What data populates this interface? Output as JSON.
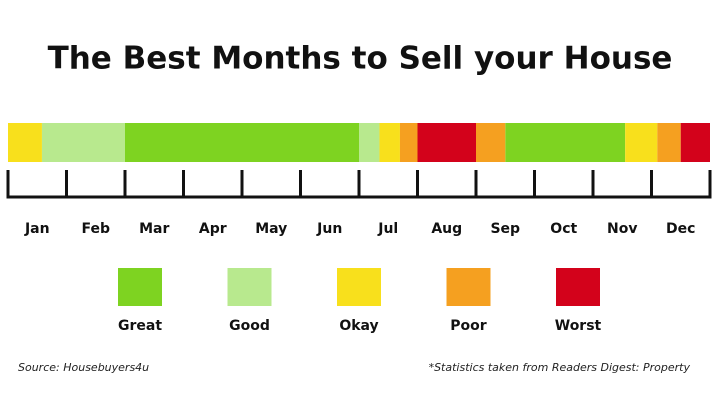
{
  "chart_data": {
    "type": "timeline",
    "title": "The Best Months to Sell your House",
    "categories": [
      "Jan",
      "Feb",
      "Mar",
      "Apr",
      "May",
      "Jun",
      "Jul",
      "Aug",
      "Sep",
      "Oct",
      "Nov",
      "Dec"
    ],
    "xlim": [
      0,
      12
    ],
    "xticks": [
      0,
      1,
      2,
      3,
      4,
      5,
      6,
      7,
      8,
      9,
      10,
      11,
      12
    ],
    "series": [
      {
        "name": "Great",
        "color": "#7ed321",
        "segments": [
          [
            2,
            6
          ],
          [
            8.5,
            10.55
          ]
        ]
      },
      {
        "name": "Good",
        "color": "#b8e98e",
        "segments": [
          [
            0.58,
            2
          ],
          [
            6,
            6.35
          ]
        ]
      },
      {
        "name": "Okay",
        "color": "#f8e01c",
        "segments": [
          [
            0,
            0.58
          ],
          [
            6.35,
            6.7
          ],
          [
            10.55,
            11.1
          ]
        ]
      },
      {
        "name": "Poor",
        "color": "#f5a020",
        "segments": [
          [
            6.7,
            7
          ],
          [
            8,
            8.5
          ],
          [
            11.1,
            11.5
          ]
        ]
      },
      {
        "name": "Worst",
        "color": "#d3021b",
        "segments": [
          [
            7,
            8
          ],
          [
            11.5,
            12
          ]
        ]
      }
    ],
    "source": "Source: Housebuyers4u",
    "note": "*Statistics taken from Readers Digest: Property"
  }
}
